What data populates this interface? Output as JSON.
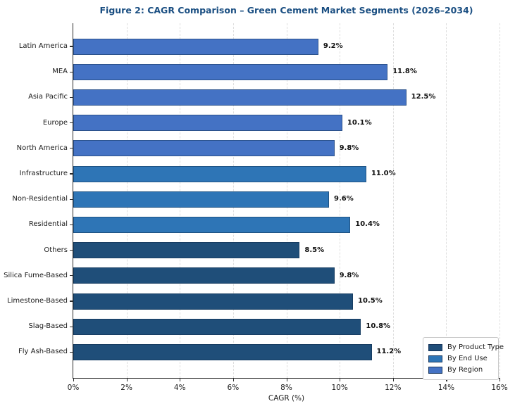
{
  "chart_data": {
    "type": "bar",
    "orientation": "horizontal",
    "title": "Figure 2: CAGR Comparison – Green Cement Market Segments (2026–2034)",
    "xlabel": "CAGR (%)",
    "xlim": [
      0,
      16
    ],
    "x_tick_values": [
      0,
      2,
      4,
      6,
      8,
      10,
      12,
      14,
      16
    ],
    "x_tick_labels": [
      "0%",
      "2%",
      "4%",
      "6%",
      "8%",
      "10%",
      "12%",
      "14%",
      "16%"
    ],
    "grid": "vertical-dashed",
    "colors": {
      "product_type": "#1F4E79",
      "end_use": "#2E75B6",
      "region": "#4472C4",
      "title": "#1b4f82"
    },
    "bars": [
      {
        "label": "Latin America",
        "value": 9.2,
        "value_label": "9.2%",
        "group": "region"
      },
      {
        "label": "MEA",
        "value": 11.8,
        "value_label": "11.8%",
        "group": "region"
      },
      {
        "label": "Asia Pacific",
        "value": 12.5,
        "value_label": "12.5%",
        "group": "region"
      },
      {
        "label": "Europe",
        "value": 10.1,
        "value_label": "10.1%",
        "group": "region"
      },
      {
        "label": "North America",
        "value": 9.8,
        "value_label": "9.8%",
        "group": "region"
      },
      {
        "label": "Infrastructure",
        "value": 11.0,
        "value_label": "11.0%",
        "group": "end_use"
      },
      {
        "label": "Non-Residential",
        "value": 9.6,
        "value_label": "9.6%",
        "group": "end_use"
      },
      {
        "label": "Residential",
        "value": 10.4,
        "value_label": "10.4%",
        "group": "end_use"
      },
      {
        "label": "Others",
        "value": 8.5,
        "value_label": "8.5%",
        "group": "product_type"
      },
      {
        "label": "Silica Fume-Based",
        "value": 9.8,
        "value_label": "9.8%",
        "group": "product_type"
      },
      {
        "label": "Limestone-Based",
        "value": 10.5,
        "value_label": "10.5%",
        "group": "product_type"
      },
      {
        "label": "Slag-Based",
        "value": 10.8,
        "value_label": "10.8%",
        "group": "product_type"
      },
      {
        "label": "Fly Ash-Based",
        "value": 11.2,
        "value_label": "11.2%",
        "group": "product_type"
      }
    ],
    "legend": {
      "position": "lower right",
      "entries": [
        {
          "label": "By Product Type",
          "group": "product_type"
        },
        {
          "label": "By End Use",
          "group": "end_use"
        },
        {
          "label": "By Region",
          "group": "region"
        }
      ]
    }
  }
}
